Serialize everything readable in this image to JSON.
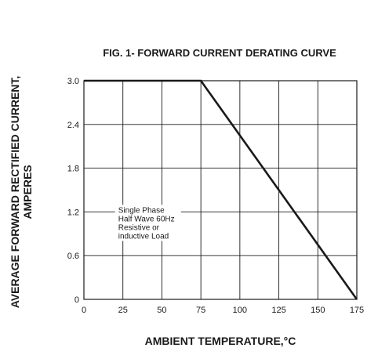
{
  "chart_data": {
    "type": "line",
    "title": "FIG. 1- FORWARD CURRENT DERATING CURVE",
    "xlabel": "AMBIENT TEMPERATURE,°C",
    "ylabel_line1": "AVERAGE FORWARD RECTIFIED CURRENT,",
    "ylabel_line2": "AMPERES",
    "x_ticks": [
      0,
      25,
      50,
      75,
      100,
      125,
      150,
      175
    ],
    "y_ticks": [
      0,
      0.6,
      1.2,
      1.8,
      2.4,
      3.0
    ],
    "x_tick_labels": [
      "0",
      "25",
      "50",
      "75",
      "100",
      "125",
      "150",
      "175"
    ],
    "y_tick_labels": [
      "0",
      "0.6",
      "1.2",
      "1.8",
      "2.4",
      "3.0"
    ],
    "xlim": [
      0,
      175
    ],
    "ylim": [
      0,
      3.0
    ],
    "grid": true,
    "series": [
      {
        "x": [
          0,
          75,
          175
        ],
        "y": [
          3.0,
          3.0,
          0
        ]
      }
    ],
    "annotation": {
      "lines": [
        "Single Phase",
        "Half Wave 60Hz",
        "Resistive or",
        "inductive Load"
      ],
      "x": 22,
      "y": 1.2
    }
  }
}
